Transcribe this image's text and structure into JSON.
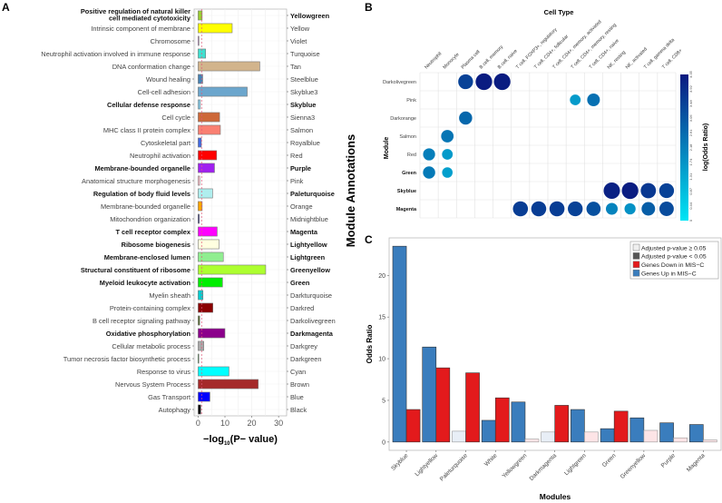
{
  "panel_labels": {
    "a": "A",
    "b": "B",
    "c": "C"
  },
  "shared_ylabel": "Module Annotations",
  "chart_data": [
    {
      "id": "A",
      "type": "bar",
      "orientation": "horizontal",
      "xlabel": "−log10(P− value)",
      "xlabel_parts": {
        "pre": "−log",
        "sub": "10",
        "post": "(P− value)"
      },
      "xlim": [
        -1.5,
        33
      ],
      "xticks": [
        0,
        10,
        20,
        30
      ],
      "threshold": 1.3,
      "threshold_color": "#e05a7a",
      "grid": true,
      "rows": [
        {
          "term": "Positive regulation of natural killer\ncell mediated cytotoxicity",
          "module": "Yellowgreen",
          "value": 1.5,
          "color": "#9acd32",
          "bold": true
        },
        {
          "term": "Intrinsic component of membrane",
          "module": "Yellow",
          "value": 12.7,
          "color": "#ffff00",
          "bold": false
        },
        {
          "term": "Chromosome",
          "module": "Violet",
          "value": 0.3,
          "color": "#c070d0",
          "bold": false
        },
        {
          "term": "Neutrophil activation involved in immune response",
          "module": "Turquoise",
          "value": 2.8,
          "color": "#40e0d0",
          "bold": false
        },
        {
          "term": "DNA conformation change",
          "module": "Tan",
          "value": 23.0,
          "color": "#d2b48c",
          "bold": false
        },
        {
          "term": "Wound healing",
          "module": "Steelblue",
          "value": 1.7,
          "color": "#4682b4",
          "bold": false
        },
        {
          "term": "Cell-cell adhesion",
          "module": "Skyblue3",
          "value": 18.3,
          "color": "#6ca6cd",
          "bold": false
        },
        {
          "term": "Cellular defense response",
          "module": "Skyblue",
          "value": 0.8,
          "color": "#87ceeb",
          "bold": true
        },
        {
          "term": "Cell cycle",
          "module": "Sienna3",
          "value": 8.0,
          "color": "#cd6839",
          "bold": false
        },
        {
          "term": "MHC class II protein complex",
          "module": "Salmon",
          "value": 8.3,
          "color": "#fa8072",
          "bold": false
        },
        {
          "term": "Cytoskeletal part",
          "module": "Royalblue",
          "value": 1.2,
          "color": "#4169e1",
          "bold": false
        },
        {
          "term": "Neutrophil activation",
          "module": "Red",
          "value": 6.9,
          "color": "#ff0000",
          "bold": false
        },
        {
          "term": "Membrane-bounded organelle",
          "module": "Purple",
          "value": 6.1,
          "color": "#a020f0",
          "bold": true
        },
        {
          "term": "Anatomical structure morphogenesis",
          "module": "Pink",
          "value": 0.6,
          "color": "#ffc0cb",
          "bold": false
        },
        {
          "term": "Regulation of body fluid levels",
          "module": "Paleturquoise",
          "value": 5.4,
          "color": "#afeeee",
          "bold": true
        },
        {
          "term": "Membrane-bounded organelle",
          "module": "Orange",
          "value": 1.5,
          "color": "#ffa500",
          "bold": false
        },
        {
          "term": "Mitochondrion organization",
          "module": "Midnightblue",
          "value": 0.4,
          "color": "#191970",
          "bold": false
        },
        {
          "term": "T cell receptor complex",
          "module": "Magenta",
          "value": 7.1,
          "color": "#ff00ff",
          "bold": true
        },
        {
          "term": "Ribosome biogenesis",
          "module": "Lightyellow",
          "value": 7.8,
          "color": "#ffffe0",
          "bold": true
        },
        {
          "term": "Membrane-enclosed lumen",
          "module": "Lightgreen",
          "value": 9.4,
          "color": "#90ee90",
          "bold": true
        },
        {
          "term": "Structural constituent of ribosome",
          "module": "Greenyellow",
          "value": 25.2,
          "color": "#adff2f",
          "bold": true
        },
        {
          "term": "Myeloid leukocyte activation",
          "module": "Green",
          "value": 9.1,
          "color": "#00ee00",
          "bold": true
        },
        {
          "term": "Myelin sheath",
          "module": "Darkturquoise",
          "value": 1.8,
          "color": "#00ced1",
          "bold": false
        },
        {
          "term": "Protein-containing complex",
          "module": "Darkred",
          "value": 5.5,
          "color": "#8b0000",
          "bold": false
        },
        {
          "term": "B cell receptor signaling pathway",
          "module": "Darkolivegreen",
          "value": 0.6,
          "color": "#556b2f",
          "bold": false
        },
        {
          "term": "Oxidative phosphorylation",
          "module": "Darkmagenta",
          "value": 10.0,
          "color": "#8b008b",
          "bold": true
        },
        {
          "term": "Cellular metabolic process",
          "module": "Darkgrey",
          "value": 2.1,
          "color": "#a9a9a9",
          "bold": false
        },
        {
          "term": "Tumor necrosis factor biosynthetic process",
          "module": "Darkgreen",
          "value": 0.2,
          "color": "#006400",
          "bold": false
        },
        {
          "term": "Response to virus",
          "module": "Cyan",
          "value": 11.5,
          "color": "#00ffff",
          "bold": false
        },
        {
          "term": "Nervous System Process",
          "module": "Brown",
          "value": 22.4,
          "color": "#a52a2a",
          "bold": false
        },
        {
          "term": "Gas Transport",
          "module": "Blue",
          "value": 4.4,
          "color": "#0000ff",
          "bold": false
        },
        {
          "term": "Autophagy",
          "module": "Black",
          "value": 1.0,
          "color": "#000000",
          "bold": false
        }
      ]
    },
    {
      "id": "B",
      "type": "scatter",
      "subtype": "dot-matrix",
      "title": "Cell Type",
      "ylabel": "Module",
      "colorbar_label": "log(Odds Ratio)",
      "colorbar_range": [
        0,
        4.35
      ],
      "colorbar_ticks": [
        "0",
        "0.44",
        "0.87",
        "1.31",
        "1.74",
        "2.18",
        "2.61",
        "3.05",
        "3.48",
        "3.92",
        "4.35"
      ],
      "colorbar_colors": [
        "#00e5f5",
        "#0a1a80"
      ],
      "columns": [
        "Neutrophil",
        "Monocyte",
        "Plasma cell",
        "B cell, memory",
        "B cell, naive",
        "T cell, FOXP3+, regulatory",
        "T cell, CD4+, follicular",
        "T cell, CD4+, memory, activated",
        "T cell, CD4+, memory, resting",
        "T cell, CD4+, naive",
        "NK, resting",
        "NK, activated",
        "T cell, gamma delta",
        "T cell, CD8+"
      ],
      "rows": [
        "Darkolivegreen",
        "Pink",
        "Darkorange",
        "Salmon",
        "Red",
        "Green",
        "Skyblue",
        "Magenta"
      ],
      "bold_rows": [
        "Green",
        "Skyblue",
        "Magenta"
      ],
      "points": [
        {
          "row": "Darkolivegreen",
          "col": "Plasma cell",
          "value": 3.5
        },
        {
          "row": "Darkolivegreen",
          "col": "B cell, memory",
          "value": 4.3
        },
        {
          "row": "Darkolivegreen",
          "col": "B cell, naive",
          "value": 4.3
        },
        {
          "row": "Pink",
          "col": "T cell, CD4+, memory, resting",
          "value": 1.6
        },
        {
          "row": "Pink",
          "col": "T cell, CD4+, naive",
          "value": 2.5
        },
        {
          "row": "Darkorange",
          "col": "Plasma cell",
          "value": 2.7
        },
        {
          "row": "Salmon",
          "col": "Monocyte",
          "value": 2.4
        },
        {
          "row": "Red",
          "col": "Neutrophil",
          "value": 2.2
        },
        {
          "row": "Red",
          "col": "Monocyte",
          "value": 1.6
        },
        {
          "row": "Green",
          "col": "Neutrophil",
          "value": 2.3
        },
        {
          "row": "Green",
          "col": "Monocyte",
          "value": 1.5
        },
        {
          "row": "Skyblue",
          "col": "NK, resting",
          "value": 4.2
        },
        {
          "row": "Skyblue",
          "col": "NK, activated",
          "value": 4.3
        },
        {
          "row": "Skyblue",
          "col": "T cell, gamma delta",
          "value": 3.7
        },
        {
          "row": "Skyblue",
          "col": "T cell, CD8+",
          "value": 3.5
        },
        {
          "row": "Magenta",
          "col": "T cell, FOXP3+, regulatory",
          "value": 3.6
        },
        {
          "row": "Magenta",
          "col": "T cell, CD4+, follicular",
          "value": 3.6
        },
        {
          "row": "Magenta",
          "col": "T cell, CD4+, memory, activated",
          "value": 3.6
        },
        {
          "row": "Magenta",
          "col": "T cell, CD4+, memory, resting",
          "value": 3.5
        },
        {
          "row": "Magenta",
          "col": "T cell, CD4+, naive",
          "value": 3.2
        },
        {
          "row": "Magenta",
          "col": "NK, resting",
          "value": 2.1
        },
        {
          "row": "Magenta",
          "col": "NK, activated",
          "value": 1.8
        },
        {
          "row": "Magenta",
          "col": "T cell, gamma delta",
          "value": 2.9
        },
        {
          "row": "Magenta",
          "col": "T cell, CD8+",
          "value": 3.3
        }
      ]
    },
    {
      "id": "C",
      "type": "bar",
      "orientation": "vertical",
      "xlabel": "Modules",
      "ylabel": "Odds Ratio",
      "ylim": [
        -1,
        24.5
      ],
      "yticks": [
        0,
        5,
        10,
        15,
        20
      ],
      "legend_position": "top-right",
      "legend": [
        {
          "label": "Adjusted p-value ≥ 0.05",
          "color": "#f0f0f0"
        },
        {
          "label": "Adjusted p-value < 0.05",
          "color": "#555555"
        },
        {
          "label": "Genes Down in MIS−C",
          "color": "#e31a1c"
        },
        {
          "label": "Genes Up in MIS−C",
          "color": "#3a7dbd"
        }
      ],
      "colors": {
        "up": "#3a7dbd",
        "down": "#e31a1c",
        "up_ns": "#e8eef6",
        "down_ns": "#fde4e6"
      },
      "categories": [
        "Skyblue",
        "Lightyellow",
        "Paleturquoise",
        "White",
        "Yellowgreen",
        "Darkmagenta",
        "Lightgreen",
        "Green",
        "Greenyellow",
        "Purple",
        "Magenta"
      ],
      "series": [
        {
          "name": "Genes Up in MIS−C",
          "values": [
            23.5,
            11.4,
            1.3,
            2.6,
            4.8,
            1.2,
            3.9,
            1.6,
            2.9,
            2.3,
            2.1
          ],
          "significant": [
            true,
            true,
            false,
            true,
            true,
            false,
            true,
            true,
            true,
            true,
            true
          ]
        },
        {
          "name": "Genes Down in MIS−C",
          "values": [
            3.9,
            8.9,
            8.3,
            5.3,
            0.35,
            4.4,
            1.2,
            3.7,
            1.4,
            0.5,
            0.25
          ],
          "significant": [
            true,
            true,
            true,
            true,
            false,
            true,
            false,
            true,
            false,
            false,
            false
          ]
        }
      ]
    }
  ]
}
